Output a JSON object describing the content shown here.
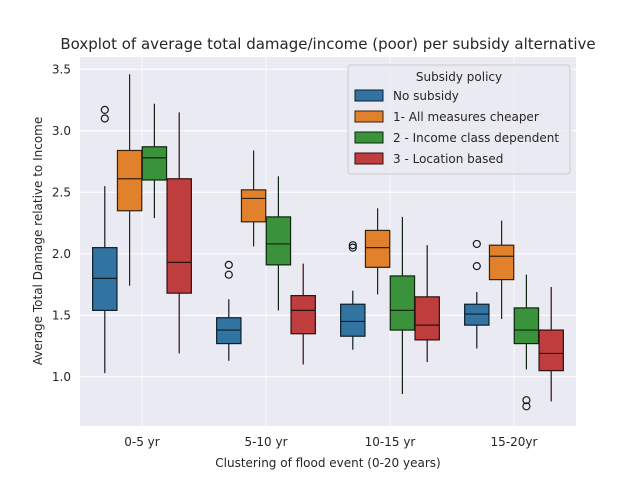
{
  "chart_data": {
    "type": "box",
    "title": "Boxplot of average total damage/income (poor) per subsidy alternative",
    "xlabel": "Clustering of flood event (0-20 years)",
    "ylabel": "Average Total Damage relative to Income",
    "ylim": [
      0.6,
      3.6
    ],
    "yticks": [
      1.0,
      1.5,
      2.0,
      2.5,
      3.0,
      3.5
    ],
    "ytick_labels": [
      "1.0",
      "1.5",
      "2.0",
      "2.5",
      "3.0",
      "3.5"
    ],
    "grid": true,
    "background": "#eaeaf2",
    "legend": {
      "title": "Subsidy policy",
      "position": "upper right"
    },
    "categories": [
      "0-5 yr",
      "5-10 yr",
      "10-15 yr",
      "15-20yr"
    ],
    "series": [
      {
        "name": "No subsidy",
        "color": "#3274a1",
        "boxes": [
          {
            "whislo": 1.03,
            "q1": 1.54,
            "med": 1.8,
            "q3": 2.05,
            "whishi": 2.55,
            "fliers": [
              3.1,
              3.17
            ]
          },
          {
            "whislo": 1.13,
            "q1": 1.27,
            "med": 1.38,
            "q3": 1.48,
            "whishi": 1.63,
            "fliers": [
              1.83,
              1.91
            ]
          },
          {
            "whislo": 1.22,
            "q1": 1.33,
            "med": 1.45,
            "q3": 1.59,
            "whishi": 1.7,
            "fliers": [
              2.05,
              2.07
            ]
          },
          {
            "whislo": 1.23,
            "q1": 1.42,
            "med": 1.51,
            "q3": 1.59,
            "whishi": 1.69,
            "fliers": [
              1.9,
              2.08
            ]
          }
        ]
      },
      {
        "name": "1- All measures cheaper",
        "color": "#e1812c",
        "boxes": [
          {
            "whislo": 1.74,
            "q1": 2.35,
            "med": 2.61,
            "q3": 2.84,
            "whishi": 3.46,
            "fliers": []
          },
          {
            "whislo": 2.06,
            "q1": 2.26,
            "med": 2.45,
            "q3": 2.52,
            "whishi": 2.84,
            "fliers": []
          },
          {
            "whislo": 1.67,
            "q1": 1.89,
            "med": 2.05,
            "q3": 2.19,
            "whishi": 2.37,
            "fliers": []
          },
          {
            "whislo": 1.47,
            "q1": 1.79,
            "med": 1.98,
            "q3": 2.07,
            "whishi": 2.27,
            "fliers": []
          }
        ]
      },
      {
        "name": "2 - Income class dependent",
        "color": "#3a923a",
        "boxes": [
          {
            "whislo": 2.29,
            "q1": 2.6,
            "med": 2.78,
            "q3": 2.87,
            "whishi": 3.22,
            "fliers": []
          },
          {
            "whislo": 1.54,
            "q1": 1.91,
            "med": 2.08,
            "q3": 2.3,
            "whishi": 2.63,
            "fliers": []
          },
          {
            "whislo": 0.86,
            "q1": 1.38,
            "med": 1.54,
            "q3": 1.82,
            "whishi": 2.3,
            "fliers": []
          },
          {
            "whislo": 1.06,
            "q1": 1.27,
            "med": 1.38,
            "q3": 1.56,
            "whishi": 1.83,
            "fliers": [
              0.76,
              0.81
            ]
          }
        ]
      },
      {
        "name": "3 - Location based",
        "color": "#c03d3e",
        "boxes": [
          {
            "whislo": 1.19,
            "q1": 1.68,
            "med": 1.93,
            "q3": 2.61,
            "whishi": 3.15,
            "fliers": []
          },
          {
            "whislo": 1.1,
            "q1": 1.35,
            "med": 1.54,
            "q3": 1.66,
            "whishi": 1.92,
            "fliers": []
          },
          {
            "whislo": 1.12,
            "q1": 1.3,
            "med": 1.42,
            "q3": 1.65,
            "whishi": 2.07,
            "fliers": []
          },
          {
            "whislo": 0.8,
            "q1": 1.05,
            "med": 1.19,
            "q3": 1.38,
            "whishi": 1.73,
            "fliers": []
          }
        ]
      }
    ]
  }
}
